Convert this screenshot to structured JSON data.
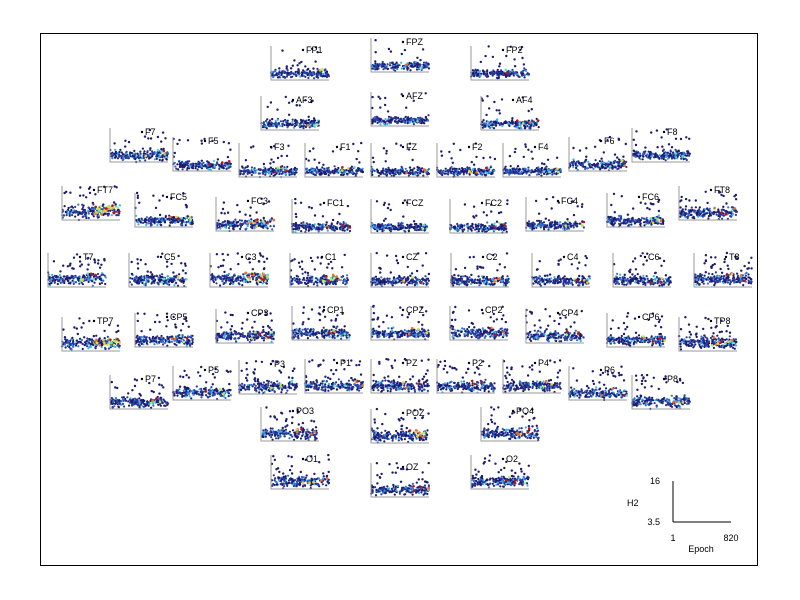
{
  "chart_data": {
    "type": "scatter",
    "layout": "topographic-grid",
    "xlabel": "Epoch",
    "ylabel": "H2",
    "xlim": [
      1,
      820
    ],
    "ylim": [
      3.5,
      16
    ],
    "scale_legend": {
      "x_ticks": [
        "1",
        "820"
      ],
      "y_ticks": [
        "3.5",
        "16"
      ],
      "xlabel": "Epoch",
      "ylabel": "H2"
    },
    "colormap": [
      "#1a1a6e",
      "#2b3a9b",
      "#3070d0",
      "#35b0e8",
      "#5ee0d0",
      "#b0f060",
      "#f0d030",
      "#f07020",
      "#c01010"
    ],
    "channels": [
      {
        "name": "FP1",
        "level": 5.8,
        "spread": 1.5,
        "outliers": 18,
        "hot": 0.02
      },
      {
        "name": "FPZ",
        "level": 5.6,
        "spread": 1.3,
        "outliers": 10,
        "hot": 0.02
      },
      {
        "name": "FP2",
        "level": 5.8,
        "spread": 1.4,
        "outliers": 14,
        "hot": 0.02
      },
      {
        "name": "AF3",
        "level": 5.8,
        "spread": 1.5,
        "outliers": 16,
        "hot": 0.03
      },
      {
        "name": "AFZ",
        "level": 5.6,
        "spread": 1.3,
        "outliers": 12,
        "hot": 0.02
      },
      {
        "name": "AF4",
        "level": 5.8,
        "spread": 1.5,
        "outliers": 14,
        "hot": 0.03
      },
      {
        "name": "F7",
        "level": 6.0,
        "spread": 1.8,
        "outliers": 14,
        "hot": 0.06
      },
      {
        "name": "F5",
        "level": 5.6,
        "spread": 1.5,
        "outliers": 16,
        "hot": 0.03
      },
      {
        "name": "F3",
        "level": 5.6,
        "spread": 1.5,
        "outliers": 14,
        "hot": 0.04
      },
      {
        "name": "F1",
        "level": 5.6,
        "spread": 1.5,
        "outliers": 14,
        "hot": 0.04
      },
      {
        "name": "FZ",
        "level": 5.5,
        "spread": 1.4,
        "outliers": 12,
        "hot": 0.03
      },
      {
        "name": "F2",
        "level": 5.5,
        "spread": 1.5,
        "outliers": 14,
        "hot": 0.03
      },
      {
        "name": "F4",
        "level": 5.6,
        "spread": 1.5,
        "outliers": 14,
        "hot": 0.03
      },
      {
        "name": "F6",
        "level": 5.8,
        "spread": 1.6,
        "outliers": 16,
        "hot": 0.03
      },
      {
        "name": "F8",
        "level": 6.0,
        "spread": 1.6,
        "outliers": 18,
        "hot": 0.02
      },
      {
        "name": "FT7",
        "level": 6.5,
        "spread": 2.2,
        "outliers": 18,
        "hot": 0.25
      },
      {
        "name": "FC5",
        "level": 5.8,
        "spread": 1.6,
        "outliers": 16,
        "hot": 0.06
      },
      {
        "name": "FC3",
        "level": 5.8,
        "spread": 1.7,
        "outliers": 16,
        "hot": 0.08
      },
      {
        "name": "FC1",
        "level": 5.6,
        "spread": 1.5,
        "outliers": 14,
        "hot": 0.03
      },
      {
        "name": "FCZ",
        "level": 5.5,
        "spread": 1.4,
        "outliers": 12,
        "hot": 0.02
      },
      {
        "name": "FC2",
        "level": 5.5,
        "spread": 1.5,
        "outliers": 14,
        "hot": 0.03
      },
      {
        "name": "FC4",
        "level": 5.6,
        "spread": 1.5,
        "outliers": 14,
        "hot": 0.03
      },
      {
        "name": "FC6",
        "level": 5.8,
        "spread": 1.7,
        "outliers": 16,
        "hot": 0.04
      },
      {
        "name": "FT8",
        "level": 6.2,
        "spread": 1.8,
        "outliers": 20,
        "hot": 0.03
      },
      {
        "name": "T7",
        "level": 6.5,
        "spread": 2.0,
        "outliers": 26,
        "hot": 0.06
      },
      {
        "name": "C5",
        "level": 6.0,
        "spread": 1.8,
        "outliers": 22,
        "hot": 0.04
      },
      {
        "name": "C3",
        "level": 6.5,
        "spread": 2.0,
        "outliers": 24,
        "hot": 0.2
      },
      {
        "name": "C1",
        "level": 6.0,
        "spread": 1.8,
        "outliers": 22,
        "hot": 0.08
      },
      {
        "name": "CZ",
        "level": 5.8,
        "spread": 1.6,
        "outliers": 18,
        "hot": 0.03
      },
      {
        "name": "C2",
        "level": 5.8,
        "spread": 1.6,
        "outliers": 18,
        "hot": 0.03
      },
      {
        "name": "C4",
        "level": 5.8,
        "spread": 1.6,
        "outliers": 18,
        "hot": 0.03
      },
      {
        "name": "C6",
        "level": 6.0,
        "spread": 1.8,
        "outliers": 20,
        "hot": 0.03
      },
      {
        "name": "T8",
        "level": 6.5,
        "spread": 2.0,
        "outliers": 28,
        "hot": 0.04
      },
      {
        "name": "TP7",
        "level": 6.5,
        "spread": 2.0,
        "outliers": 16,
        "hot": 0.2
      },
      {
        "name": "CP5",
        "level": 6.0,
        "spread": 1.8,
        "outliers": 20,
        "hot": 0.04
      },
      {
        "name": "CP3",
        "level": 6.0,
        "spread": 1.8,
        "outliers": 22,
        "hot": 0.05
      },
      {
        "name": "CP1",
        "level": 6.0,
        "spread": 1.8,
        "outliers": 22,
        "hot": 0.04
      },
      {
        "name": "CPZ",
        "level": 6.0,
        "spread": 1.7,
        "outliers": 20,
        "hot": 0.03
      },
      {
        "name": "CP2",
        "level": 6.0,
        "spread": 1.8,
        "outliers": 22,
        "hot": 0.03
      },
      {
        "name": "CP4",
        "level": 6.0,
        "spread": 1.8,
        "outliers": 22,
        "hot": 0.03
      },
      {
        "name": "CP6",
        "level": 6.0,
        "spread": 1.8,
        "outliers": 20,
        "hot": 0.04
      },
      {
        "name": "TP8",
        "level": 6.5,
        "spread": 2.0,
        "outliers": 24,
        "hot": 0.1
      },
      {
        "name": "P7",
        "level": 6.0,
        "spread": 1.8,
        "outliers": 18,
        "hot": 0.04
      },
      {
        "name": "P5",
        "level": 6.0,
        "spread": 1.8,
        "outliers": 20,
        "hot": 0.04
      },
      {
        "name": "P3",
        "level": 6.2,
        "spread": 1.9,
        "outliers": 24,
        "hot": 0.04
      },
      {
        "name": "P1",
        "level": 6.2,
        "spread": 1.9,
        "outliers": 24,
        "hot": 0.04
      },
      {
        "name": "PZ",
        "level": 6.0,
        "spread": 1.8,
        "outliers": 24,
        "hot": 0.03
      },
      {
        "name": "P2",
        "level": 6.0,
        "spread": 1.8,
        "outliers": 22,
        "hot": 0.03
      },
      {
        "name": "P4",
        "level": 6.0,
        "spread": 1.8,
        "outliers": 22,
        "hot": 0.03
      },
      {
        "name": "P6",
        "level": 6.0,
        "spread": 1.8,
        "outliers": 20,
        "hot": 0.03
      },
      {
        "name": "P8",
        "level": 6.2,
        "spread": 1.9,
        "outliers": 22,
        "hot": 0.03
      },
      {
        "name": "PO3",
        "level": 6.2,
        "spread": 1.9,
        "outliers": 22,
        "hot": 0.04
      },
      {
        "name": "POZ",
        "level": 6.2,
        "spread": 1.9,
        "outliers": 22,
        "hot": 0.08
      },
      {
        "name": "PO4",
        "level": 6.2,
        "spread": 1.9,
        "outliers": 22,
        "hot": 0.04
      },
      {
        "name": "O1",
        "level": 6.2,
        "spread": 1.9,
        "outliers": 22,
        "hot": 0.04
      },
      {
        "name": "OZ",
        "level": 6.2,
        "spread": 1.9,
        "outliers": 22,
        "hot": 0.04
      },
      {
        "name": "O2",
        "level": 6.2,
        "spread": 1.9,
        "outliers": 22,
        "hot": 0.04
      }
    ]
  }
}
